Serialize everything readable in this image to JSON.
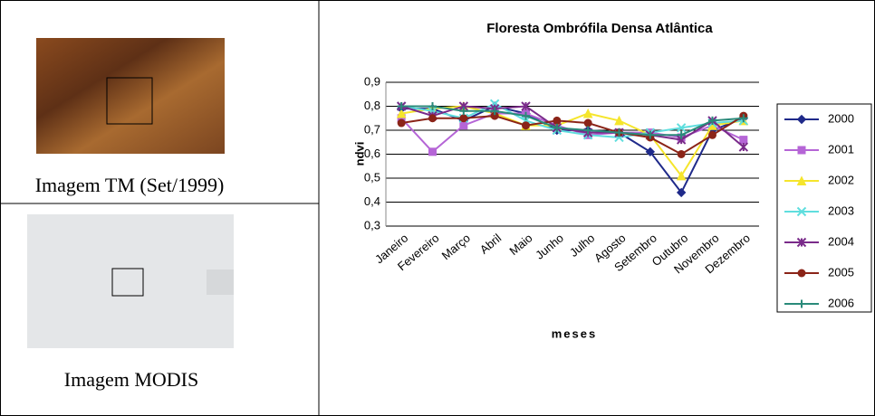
{
  "panels": {
    "top_caption": "Imagem TM (Set/1999)",
    "bottom_caption": "Imagem MODIS"
  },
  "chart_data": {
    "type": "line",
    "title": "Floresta Ombrófila Densa Atlântica",
    "x_label": "meses",
    "y_label": "ndvi",
    "categories": [
      "Janeiro",
      "Fevereiro",
      "Março",
      "Abril",
      "Maio",
      "Junho",
      "Julho",
      "Agosto",
      "Setembro",
      "Outubro",
      "Novembro",
      "Dezembro"
    ],
    "ylim": [
      0.3,
      0.9
    ],
    "yticks": [
      {
        "value": 0.3,
        "label": "0,3"
      },
      {
        "value": 0.4,
        "label": "0,4"
      },
      {
        "value": 0.5,
        "label": "0,5"
      },
      {
        "value": 0.6,
        "label": "0,6"
      },
      {
        "value": 0.7,
        "label": "0,7"
      },
      {
        "value": 0.8,
        "label": "0,8"
      },
      {
        "value": 0.9,
        "label": "0,9"
      }
    ],
    "grid": true,
    "legend": "right",
    "series": [
      {
        "name": "2000",
        "color": "#1f2a8a",
        "marker": "diamond",
        "values": [
          0.79,
          0.79,
          0.74,
          0.8,
          0.77,
          0.7,
          0.7,
          0.69,
          0.61,
          0.44,
          0.7,
          0.75
        ]
      },
      {
        "name": "2001",
        "color": "#b565d6",
        "marker": "square",
        "values": [
          0.75,
          0.61,
          0.72,
          0.77,
          0.77,
          0.72,
          0.68,
          0.69,
          0.69,
          0.67,
          0.72,
          0.66
        ]
      },
      {
        "name": "2002",
        "color": "#f5e52c",
        "marker": "triangle",
        "values": [
          0.77,
          0.79,
          0.8,
          0.77,
          0.72,
          0.72,
          0.77,
          0.74,
          0.68,
          0.51,
          0.72,
          0.74
        ]
      },
      {
        "name": "2003",
        "color": "#5fdede",
        "marker": "x",
        "values": [
          0.8,
          0.78,
          0.75,
          0.81,
          0.74,
          0.7,
          0.68,
          0.67,
          0.69,
          0.71,
          0.73,
          0.74
        ]
      },
      {
        "name": "2004",
        "color": "#7a2b8a",
        "marker": "star",
        "values": [
          0.8,
          0.76,
          0.8,
          0.79,
          0.8,
          0.71,
          0.69,
          0.69,
          0.68,
          0.66,
          0.74,
          0.63
        ]
      },
      {
        "name": "2005",
        "color": "#8b2418",
        "marker": "circle",
        "values": [
          0.73,
          0.75,
          0.75,
          0.76,
          0.72,
          0.74,
          0.73,
          0.69,
          0.67,
          0.6,
          0.68,
          0.76
        ]
      },
      {
        "name": "2006",
        "color": "#2a8a7a",
        "marker": "plus",
        "values": [
          0.8,
          0.8,
          0.78,
          0.78,
          0.76,
          0.71,
          0.7,
          0.69,
          0.68,
          0.68,
          0.74,
          0.75
        ]
      }
    ]
  }
}
